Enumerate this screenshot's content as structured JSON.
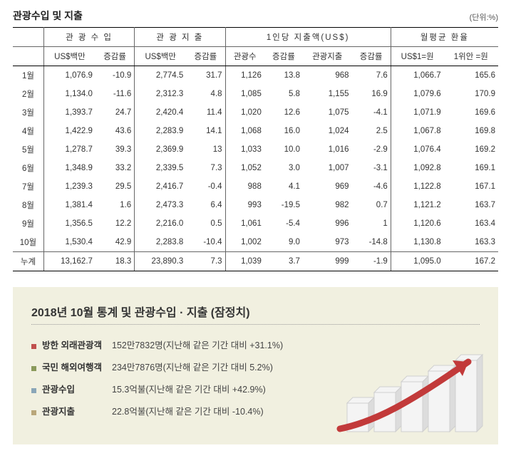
{
  "title": "관광수입 및 지출",
  "unit": "(단위:%)",
  "table": {
    "group_headers": [
      "",
      "관 광 수 입",
      "관 광 지 출",
      "1인당 지출액(US$)",
      "월평균 환율"
    ],
    "sub_headers": [
      "",
      "US$백만",
      "증감률",
      "US$백만",
      "증감률",
      "관광수",
      "증감률",
      "관광지출",
      "증감률",
      "US$1=원",
      "1위안 =원"
    ],
    "rows": [
      [
        "1월",
        "1,076.9",
        "-10.9",
        "2,774.5",
        "31.7",
        "1,126",
        "13.8",
        "968",
        "7.6",
        "1,066.7",
        "165.6"
      ],
      [
        "2월",
        "1,134.0",
        "-11.6",
        "2,312.3",
        "4.8",
        "1,085",
        "5.8",
        "1,155",
        "16.9",
        "1,079.6",
        "170.9"
      ],
      [
        "3월",
        "1,393.7",
        "24.7",
        "2,420.4",
        "11.4",
        "1,020",
        "12.6",
        "1,075",
        "-4.1",
        "1,071.9",
        "169.6"
      ],
      [
        "4월",
        "1,422.9",
        "43.6",
        "2,283.9",
        "14.1",
        "1,068",
        "16.0",
        "1,024",
        "2.5",
        "1,067.8",
        "169.8"
      ],
      [
        "5월",
        "1,278.7",
        "39.3",
        "2,369.9",
        "13",
        "1,033",
        "10.0",
        "1,016",
        "-2.9",
        "1,076.4",
        "169.2"
      ],
      [
        "6월",
        "1,348.9",
        "33.2",
        "2,339.5",
        "7.3",
        "1,052",
        "3.0",
        "1,007",
        "-3.1",
        "1,092.8",
        "169.1"
      ],
      [
        "7월",
        "1,239.3",
        "29.5",
        "2,416.7",
        "-0.4",
        "988",
        "4.1",
        "969",
        "-4.6",
        "1,122.8",
        "167.1"
      ],
      [
        "8월",
        "1,381.4",
        "1.6",
        "2,473.3",
        "6.4",
        "993",
        "-19.5",
        "982",
        "0.7",
        "1,121.2",
        "163.7"
      ],
      [
        "9월",
        "1,356.5",
        "12.2",
        "2,216.0",
        "0.5",
        "1,061",
        "-5.4",
        "996",
        "1",
        "1,120.6",
        "163.4"
      ],
      [
        "10월",
        "1,530.4",
        "42.9",
        "2,283.8",
        "-10.4",
        "1,002",
        "9.0",
        "973",
        "-14.8",
        "1,130.8",
        "163.3"
      ],
      [
        "누계",
        "13,162.7",
        "18.3",
        "23,890.3",
        "7.3",
        "1,039",
        "3.7",
        "999",
        "-1.9",
        "1,095.0",
        "167.2"
      ]
    ]
  },
  "summary": {
    "title": "2018년 10월 통계 및 관광수입 · 지출 (잠정치)",
    "items": [
      {
        "label": "방한 외래관광객",
        "value": "152만7832명(지난해 같은 기간 대비 +31.1%)",
        "color": "#c0504d"
      },
      {
        "label": "국민 해외여행객",
        "value": "234만7876명(지난해 같은 기간 대비 5.2%)",
        "color": "#8a9a5b"
      },
      {
        "label": "관광수입",
        "value": "15.3억불(지난해 같은 기간 대비 +42.9%)",
        "color": "#8aa6b8"
      },
      {
        "label": "관광지출",
        "value": "22.8억불(지난해 같은 기간 대비 -10.4%)",
        "color": "#b9a77a"
      }
    ]
  },
  "deco_chart": {
    "bars": [
      40,
      55,
      70,
      85,
      100
    ],
    "bar_color_top": "#f4f4f4",
    "bar_color_side": "#dcdcdc",
    "arrow_color": "#c23a3a"
  }
}
